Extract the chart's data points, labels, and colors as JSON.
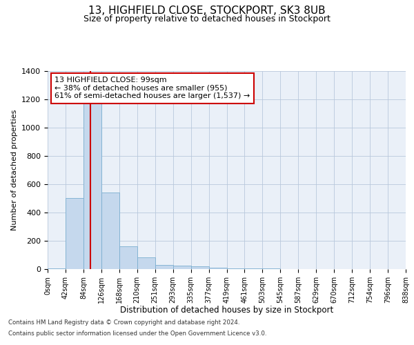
{
  "title": "13, HIGHFIELD CLOSE, STOCKPORT, SK3 8UB",
  "subtitle": "Size of property relative to detached houses in Stockport",
  "xlabel": "Distribution of detached houses by size in Stockport",
  "ylabel": "Number of detached properties",
  "bin_labels": [
    "0sqm",
    "42sqm",
    "84sqm",
    "126sqm",
    "168sqm",
    "210sqm",
    "251sqm",
    "293sqm",
    "335sqm",
    "377sqm",
    "419sqm",
    "461sqm",
    "503sqm",
    "545sqm",
    "587sqm",
    "629sqm",
    "670sqm",
    "712sqm",
    "754sqm",
    "796sqm",
    "838sqm"
  ],
  "bar_heights": [
    5,
    500,
    1250,
    540,
    160,
    85,
    30,
    25,
    20,
    10,
    5,
    5,
    5,
    2,
    1,
    1,
    0,
    0,
    0,
    0
  ],
  "bar_color": "#c5d8ed",
  "bar_edge_color": "#7aaed0",
  "vline_x": 2.38,
  "vline_color": "#cc0000",
  "annotation_text": "13 HIGHFIELD CLOSE: 99sqm\n← 38% of detached houses are smaller (955)\n61% of semi-detached houses are larger (1,537) →",
  "annotation_box_color": "#ffffff",
  "annotation_box_edge": "#cc0000",
  "ylim": [
    0,
    1400
  ],
  "yticks": [
    0,
    200,
    400,
    600,
    800,
    1000,
    1200,
    1400
  ],
  "bg_color": "#eaf0f8",
  "footer_line1": "Contains HM Land Registry data © Crown copyright and database right 2024.",
  "footer_line2": "Contains public sector information licensed under the Open Government Licence v3.0."
}
